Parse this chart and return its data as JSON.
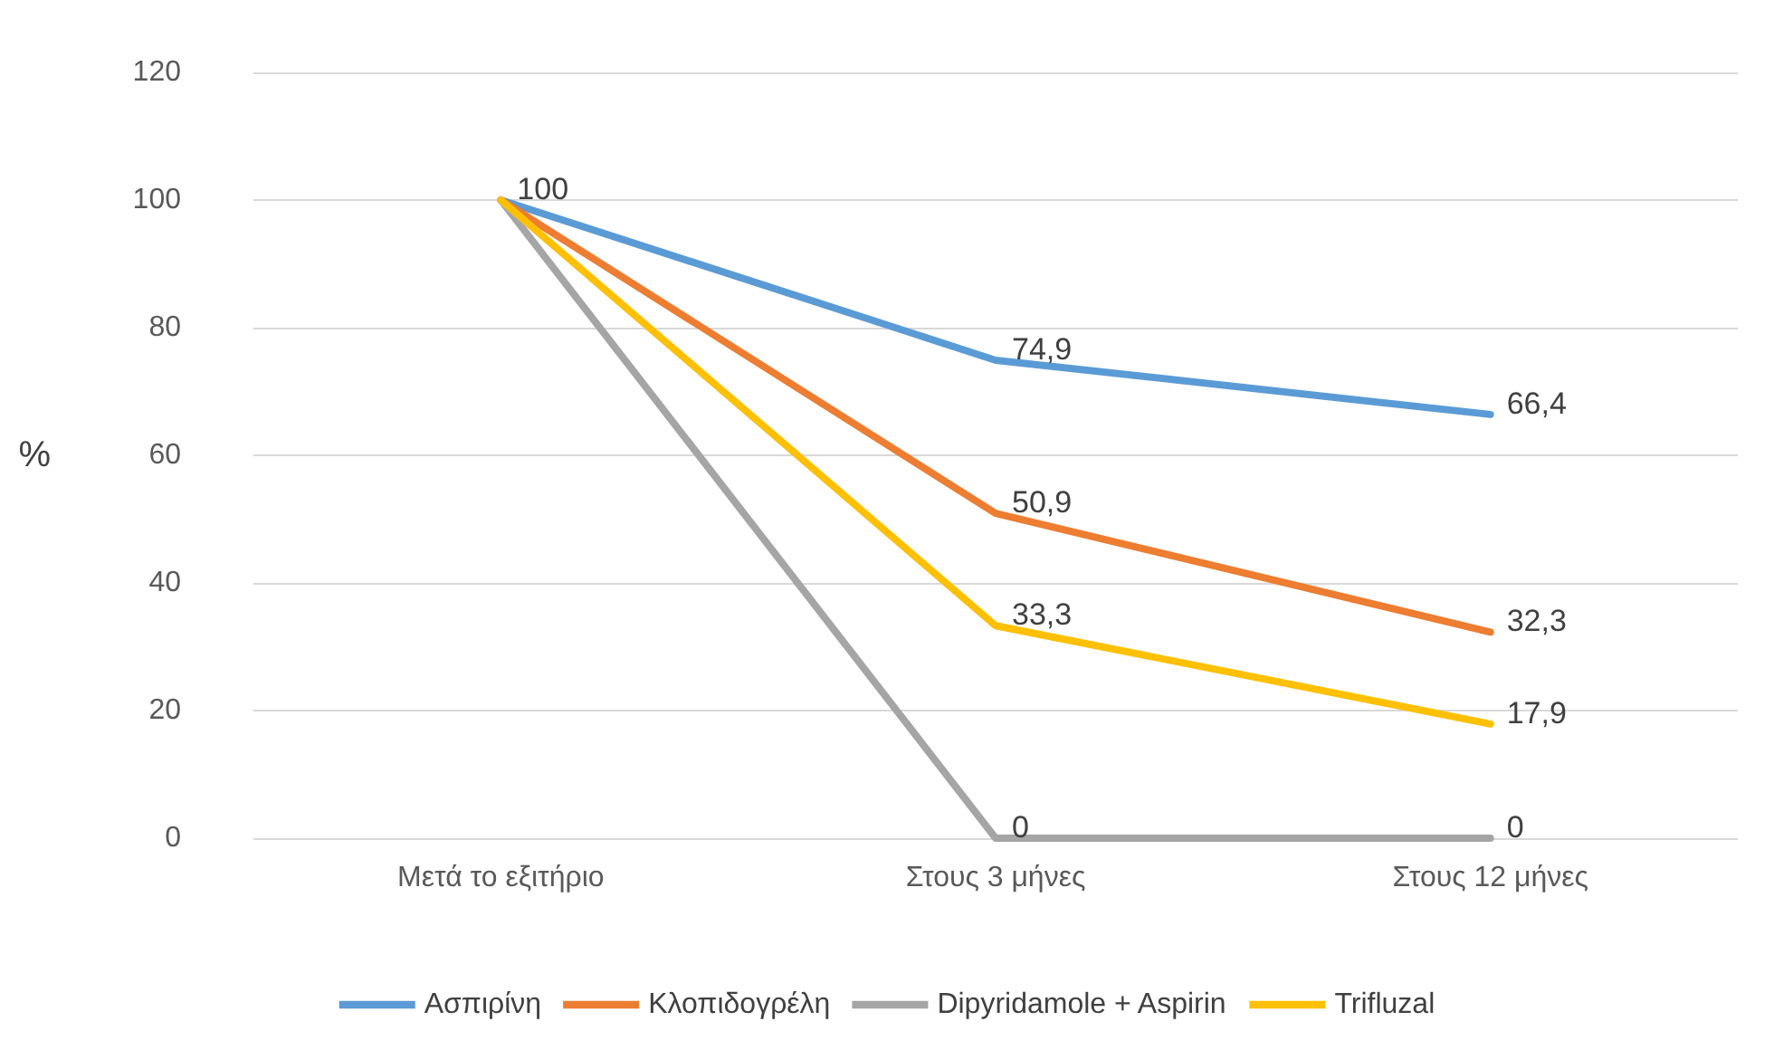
{
  "chart_data": {
    "type": "line",
    "ylabel": "%",
    "categories": [
      "Μετά το εξιτήριο",
      "Στους 3 μήνες",
      "Στους 12 μήνες"
    ],
    "series": [
      {
        "name": "Ασπιρίνη",
        "color": "#5b9bd5",
        "values": [
          100,
          74.9,
          66.4
        ],
        "value_labels": [
          "100",
          "74,9",
          "66,4"
        ]
      },
      {
        "name": "Κλοπιδογρέλη",
        "color": "#ed7d31",
        "values": [
          100,
          50.9,
          32.3
        ],
        "value_labels": [
          null,
          "50,9",
          "32,3"
        ]
      },
      {
        "name": "Dipyridamole + Aspirin",
        "color": "#a5a5a5",
        "values": [
          100,
          0,
          0
        ],
        "value_labels": [
          null,
          "0",
          "0"
        ]
      },
      {
        "name": "Trifluzal",
        "color": "#ffc000",
        "values": [
          100,
          33.3,
          17.9
        ],
        "value_labels": [
          null,
          "33,3",
          "17,9"
        ]
      }
    ],
    "ylim": [
      0,
      120
    ],
    "yticks": [
      0,
      20,
      40,
      60,
      80,
      100,
      120
    ],
    "grid": "y",
    "legend": "bottom",
    "marker": "none",
    "line_style": "solid"
  }
}
